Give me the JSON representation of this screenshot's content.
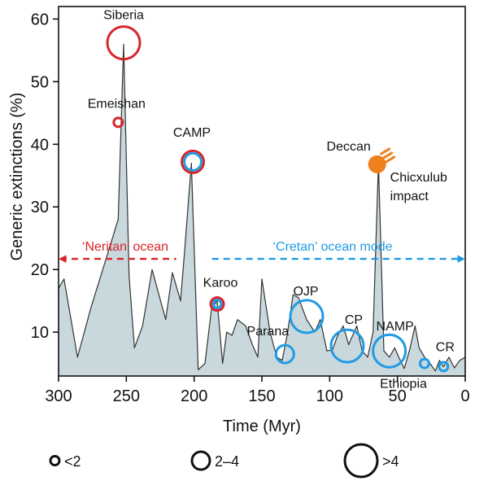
{
  "chart_data": {
    "type": "area",
    "xlabel": "Time (Myr)",
    "ylabel": "Generic extinctions (%)",
    "xlim": [
      300,
      0
    ],
    "ylim": [
      3,
      62
    ],
    "x_ticks": [
      "300",
      "250",
      "200",
      "150",
      "100",
      "50",
      "0"
    ],
    "y_ticks": [
      "10",
      "20",
      "30",
      "40",
      "50",
      "60"
    ],
    "colors": {
      "fill": "#c9d8dd",
      "stroke": "#333333",
      "red": "#d7262b",
      "blue": "#1f9be3",
      "orange": "#f07f1e"
    },
    "series": [
      {
        "x": [
          300,
          296,
          286,
          276,
          266,
          256,
          252,
          248,
          244,
          238,
          231,
          221,
          216,
          210,
          207,
          202,
          197,
          192,
          187,
          183,
          179,
          176,
          172,
          168,
          162,
          157,
          153,
          150,
          144,
          139,
          135,
          131,
          127,
          123,
          117,
          111,
          107,
          102,
          98,
          94,
          90,
          86,
          80,
          76,
          72,
          68,
          64,
          60,
          56,
          52,
          49,
          45,
          41,
          37,
          34,
          30,
          26,
          22,
          19,
          16,
          12,
          8,
          4,
          0
        ],
        "values": [
          17,
          18.5,
          6,
          14,
          21,
          28,
          56,
          19,
          7.5,
          11,
          20,
          12,
          19.5,
          15,
          23,
          37,
          4,
          5,
          14,
          15,
          5,
          10,
          9.5,
          12,
          11,
          8,
          6,
          18.5,
          10,
          6,
          5.5,
          10,
          16,
          15.5,
          12,
          10,
          12,
          7,
          7.2,
          9.5,
          11,
          8,
          11,
          7,
          6,
          10,
          37,
          7,
          6,
          7.5,
          6,
          4.2,
          7.2,
          11,
          7.5,
          6,
          5,
          3.8,
          5.5,
          4.5,
          6,
          4.3,
          5.5,
          6
        ]
      }
    ],
    "events": [
      {
        "name": "Siberia",
        "x": 252,
        "y": 56.2,
        "size": ">4",
        "color": "red"
      },
      {
        "name": "Emeishan",
        "x": 256,
        "y": 43.5,
        "size": "<2",
        "color": "red"
      },
      {
        "name": "CAMP",
        "x": 201,
        "y": 37.2,
        "size": "2–4",
        "color": "red+blue"
      },
      {
        "name": "Karoo",
        "x": 183,
        "y": 14.5,
        "size": "<2",
        "color": "red+blue"
      },
      {
        "name": "Parana",
        "x": 133,
        "y": 6.5,
        "size": "2–4",
        "color": "blue"
      },
      {
        "name": "OJP",
        "x": 117,
        "y": 12.5,
        "size": ">4",
        "color": "blue"
      },
      {
        "name": "CP",
        "x": 87,
        "y": 7.8,
        "size": ">4",
        "color": "blue"
      },
      {
        "name": "NAMP",
        "x": 56,
        "y": 7,
        "size": ">4",
        "color": "blue"
      },
      {
        "name": "Deccan",
        "x": 65,
        "y": 36.8,
        "size": "2–4",
        "color": "orange"
      },
      {
        "name": "Ethiopia",
        "x": 30,
        "y": 5,
        "size": "<2",
        "color": "blue"
      },
      {
        "name": "CR",
        "x": 16,
        "y": 4.5,
        "size": "<2",
        "color": "blue"
      }
    ],
    "annotations": [
      {
        "text": "Chicxulub",
        "near": "Deccan"
      },
      {
        "text": "impact",
        "near": "Deccan"
      }
    ],
    "modes": [
      {
        "label": "‘Neritan’ ocean",
        "from": 300,
        "to": 200,
        "y": 21.7,
        "color": "red"
      },
      {
        "label": "‘Cretan’ ocean mode",
        "from": 200,
        "to": 0,
        "y": 21.7,
        "color": "blue"
      }
    ],
    "legend": [
      {
        "label": "<2",
        "size": "<2"
      },
      {
        "label": "2–4",
        "size": "2–4"
      },
      {
        "label": ">4",
        "size": ">4"
      }
    ],
    "legend_position": "bottom"
  }
}
